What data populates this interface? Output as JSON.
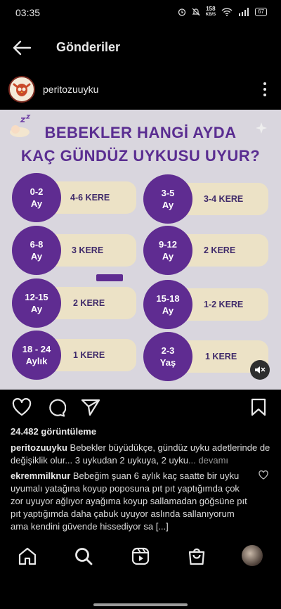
{
  "status": {
    "time": "03:35",
    "net_speed_value": "158",
    "net_speed_unit": "KB/S",
    "battery": "67"
  },
  "header": {
    "title": "Gönderiler"
  },
  "post": {
    "username": "peritozuuyku",
    "image": {
      "title_line1": "BEBEKLER HANGİ AYDA",
      "title_line2": "KAÇ GÜNDÜZ UYKUSU UYUR?",
      "rows": [
        {
          "left": {
            "age_top": "0-2",
            "age_bottom": "Ay",
            "count": "4-6 KERE"
          },
          "right": {
            "age_top": "3-5",
            "age_bottom": "Ay",
            "count": "3-4 KERE"
          }
        },
        {
          "left": {
            "age_top": "6-8",
            "age_bottom": "Ay",
            "count": "3 KERE"
          },
          "right": {
            "age_top": "9-12",
            "age_bottom": "Ay",
            "count": "2 KERE"
          }
        },
        {
          "left": {
            "age_top": "12-15",
            "age_bottom": "Ay",
            "count": "2 KERE"
          },
          "right": {
            "age_top": "15-18",
            "age_bottom": "Ay",
            "count": "1-2 KERE"
          }
        },
        {
          "left": {
            "age_top": "18 - 24",
            "age_bottom": "Aylık",
            "count": "1 KERE"
          },
          "right": {
            "age_top": "2-3",
            "age_bottom": "Yaş",
            "count": "1 KERE"
          }
        }
      ]
    },
    "views": "24.482 görüntüleme",
    "caption_user": "peritozuuyku",
    "caption_text": "Bebekler büyüdükçe, gündüz uyku adetlerinde de değişiklik olur... 3 uykudan 2 uykuya, 2 uyku",
    "caption_more": "... devamı",
    "comment_user": "ekremmilknur",
    "comment_text": "Bebeğim şuan 6 aylık kaç saatte bir uyku uyumalı yatağına koyup poposuna pıt pıt yaptığımda çok zor uyuyor ağlıyor ayağıma koyup sallamadan göğsüne pıt pıt yaptığımda daha çabuk uyuyor aslında sallanıyorum ama kendini güvende hissediyor sa",
    "comment_more": "[...]"
  },
  "icons": {
    "back": "arrow-left-icon",
    "more": "vertical-dots-icon",
    "like": "heart-icon",
    "comment": "speech-bubble-icon",
    "share": "paper-plane-icon",
    "save": "bookmark-icon",
    "mute": "speaker-muted-icon",
    "home": "home-icon",
    "search": "search-icon",
    "reels": "reels-icon",
    "shop": "shopping-bag-icon"
  },
  "colors": {
    "accent_purple": "#5f2c91",
    "pill_beige": "#ece2c6",
    "background": "#000000"
  }
}
